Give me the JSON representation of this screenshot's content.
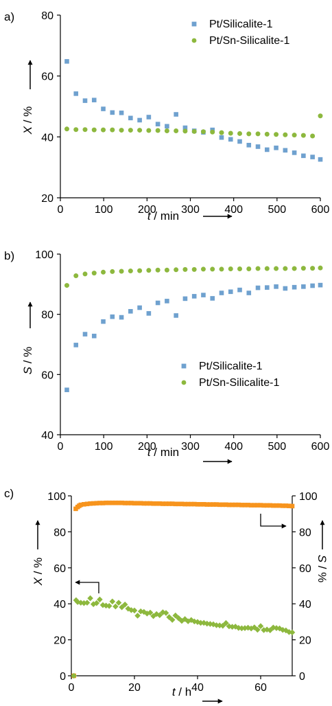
{
  "chart_data": [
    {
      "panel": "a)",
      "type": "scatter",
      "xlabel": {
        "var": "t",
        "unit": " / min"
      },
      "ylabel": {
        "var": "X",
        "unit": " / %"
      },
      "xlim": [
        0,
        600
      ],
      "ylim": [
        20,
        80
      ],
      "xticks": [
        "0",
        "100",
        "200",
        "300",
        "400",
        "500",
        "600"
      ],
      "yticks": [
        "20",
        "40",
        "60",
        "80"
      ],
      "legend": "top-right",
      "series": [
        {
          "name": "Pt/Silicalite-1",
          "marker": "square",
          "color": "#6fa1cf",
          "x": [
            15,
            36,
            57,
            78,
            99,
            120,
            141,
            162,
            183,
            204,
            225,
            246,
            267,
            288,
            309,
            330,
            351,
            372,
            393,
            414,
            435,
            456,
            477,
            498,
            519,
            540,
            561,
            582,
            600
          ],
          "y": [
            64.8,
            54.2,
            51.9,
            52.1,
            49.2,
            48.0,
            47.9,
            46.2,
            45.5,
            46.5,
            44.2,
            43.5,
            47.4,
            43.0,
            42.0,
            41.5,
            42.3,
            39.8,
            39.2,
            38.5,
            37.3,
            36.8,
            35.8,
            36.4,
            35.6,
            34.8,
            33.8,
            33.4,
            32.6
          ]
        },
        {
          "name": "Pt/Sn-Silicalite-1",
          "marker": "circle",
          "color": "#8db83e",
          "x": [
            15,
            36,
            57,
            78,
            99,
            120,
            141,
            162,
            183,
            204,
            225,
            246,
            267,
            288,
            309,
            330,
            351,
            372,
            393,
            414,
            435,
            456,
            477,
            498,
            519,
            540,
            561,
            582,
            600
          ],
          "y": [
            42.6,
            42.4,
            42.4,
            42.3,
            42.3,
            42.3,
            42.2,
            42.2,
            42.2,
            42.1,
            42.1,
            42.0,
            42.0,
            41.9,
            41.8,
            41.7,
            41.6,
            41.4,
            41.2,
            41.1,
            41.0,
            41.0,
            40.9,
            40.8,
            40.7,
            40.6,
            40.5,
            40.3,
            46.9
          ]
        }
      ]
    },
    {
      "panel": "b)",
      "type": "scatter",
      "xlabel": {
        "var": "t",
        "unit": " / min"
      },
      "ylabel": {
        "var": "S",
        "unit": " / %"
      },
      "xlim": [
        0,
        600
      ],
      "ylim": [
        40,
        100
      ],
      "xticks": [
        "0",
        "100",
        "200",
        "300",
        "400",
        "500",
        "600"
      ],
      "yticks": [
        "40",
        "60",
        "80",
        "100"
      ],
      "legend": "lower-right",
      "series": [
        {
          "name": "Pt/Silicalite-1",
          "marker": "square",
          "color": "#6fa1cf",
          "x": [
            15,
            36,
            57,
            78,
            99,
            120,
            141,
            162,
            183,
            204,
            225,
            246,
            267,
            288,
            309,
            330,
            351,
            372,
            393,
            414,
            435,
            456,
            477,
            498,
            519,
            540,
            561,
            582,
            600
          ],
          "y": [
            54.9,
            69.8,
            73.4,
            72.8,
            77.6,
            79.2,
            79.0,
            81.0,
            82.2,
            80.3,
            83.8,
            84.4,
            79.6,
            85.2,
            86.0,
            86.4,
            85.3,
            87.1,
            87.5,
            88.1,
            87.1,
            88.8,
            88.9,
            89.2,
            88.6,
            89.0,
            89.2,
            89.5,
            89.7
          ]
        },
        {
          "name": "Pt/Sn-Silicalite-1",
          "marker": "circle",
          "color": "#8db83e",
          "x": [
            15,
            36,
            57,
            78,
            99,
            120,
            141,
            162,
            183,
            204,
            225,
            246,
            267,
            288,
            309,
            330,
            351,
            372,
            393,
            414,
            435,
            456,
            477,
            498,
            519,
            540,
            561,
            582,
            600
          ],
          "y": [
            89.6,
            92.8,
            93.4,
            93.7,
            94.0,
            94.2,
            94.3,
            94.4,
            94.5,
            94.6,
            94.7,
            94.7,
            94.8,
            94.9,
            94.9,
            95.0,
            95.0,
            95.0,
            95.1,
            95.1,
            95.1,
            95.2,
            95.2,
            95.2,
            95.2,
            95.2,
            95.3,
            95.3,
            95.4
          ]
        }
      ]
    },
    {
      "panel": "c)",
      "type": "scatter",
      "xlabel": {
        "var": "t",
        "unit": " / h"
      },
      "ylabel": {
        "var": "X",
        "unit": " / %"
      },
      "y2label": {
        "var": "S",
        "unit": " / %"
      },
      "xlim": [
        0,
        70
      ],
      "ylim": [
        0,
        100
      ],
      "y2lim": [
        0,
        100
      ],
      "xticks": [
        "0",
        "20",
        "40",
        "60"
      ],
      "yticks": [
        "0",
        "20",
        "40",
        "60",
        "80",
        "100"
      ],
      "y2ticks": [
        "0",
        "20",
        "40",
        "60",
        "80",
        "100"
      ],
      "series": [
        {
          "name": "",
          "axis": "right",
          "marker": "square",
          "color": "#f7941d",
          "x": [
            0.8,
            1.4,
            2,
            2.5,
            3,
            4,
            5,
            6,
            7,
            8,
            9,
            10,
            11,
            12,
            13,
            14,
            15,
            16,
            17,
            18,
            19,
            20,
            21,
            22,
            23,
            24,
            25,
            26,
            27,
            28,
            29,
            30,
            31,
            32,
            33,
            34,
            35,
            36,
            37,
            38,
            39,
            40,
            41,
            42,
            43,
            44,
            45,
            46,
            47,
            48,
            49,
            50,
            51,
            52,
            53,
            54,
            55,
            56,
            57,
            58,
            59,
            60,
            61,
            62,
            63,
            64,
            65,
            66,
            67,
            68,
            69,
            70
          ],
          "y": [
            0,
            92.8,
            93.8,
            94.5,
            95.0,
            95.3,
            95.5,
            95.7,
            95.8,
            95.9,
            96.0,
            96.0,
            96.1,
            96.1,
            96.1,
            96.1,
            96.1,
            96.1,
            96.0,
            96.0,
            96.0,
            95.9,
            95.9,
            95.9,
            95.8,
            95.8,
            95.8,
            95.7,
            95.7,
            95.7,
            95.6,
            95.6,
            95.6,
            95.6,
            95.5,
            95.5,
            95.5,
            95.4,
            95.4,
            95.4,
            95.4,
            95.3,
            95.3,
            95.3,
            95.2,
            95.2,
            95.2,
            95.2,
            95.1,
            95.1,
            95.1,
            95.0,
            95.0,
            95.0,
            95.0,
            94.9,
            94.9,
            94.9,
            94.8,
            94.8,
            94.8,
            94.8,
            94.7,
            94.7,
            94.7,
            94.6,
            94.6,
            94.6,
            94.5,
            94.5,
            94.4,
            94.3
          ]
        },
        {
          "name": "",
          "axis": "left",
          "marker": "diamond",
          "color": "#8db83e",
          "x": [
            0.8,
            1.5,
            2,
            3,
            4,
            5,
            6,
            7,
            8,
            9,
            10,
            11,
            12,
            13,
            14,
            15,
            16,
            17,
            18,
            19,
            20,
            21,
            22,
            23,
            24,
            25,
            26,
            27,
            28,
            29,
            30,
            31,
            32,
            33,
            34,
            35,
            36,
            37,
            38,
            39,
            40,
            41,
            42,
            43,
            44,
            45,
            46,
            47,
            48,
            49,
            50,
            51,
            52,
            53,
            54,
            55,
            56,
            57,
            58,
            59,
            60,
            61,
            62,
            63,
            64,
            65,
            66,
            67,
            68,
            69,
            70
          ],
          "y": [
            0,
            42.0,
            41.0,
            40.6,
            40.4,
            40.6,
            43.1,
            39.8,
            40.4,
            42.4,
            39.3,
            39.0,
            38.8,
            41.3,
            38.5,
            40.6,
            38.1,
            39.6,
            37.3,
            36.5,
            36.3,
            33.4,
            35.8,
            35.5,
            34.6,
            35.1,
            33.2,
            34.3,
            33.7,
            35.3,
            34.9,
            32.6,
            31.1,
            33.5,
            32.0,
            30.5,
            31.5,
            30.3,
            31.0,
            30.2,
            29.9,
            29.4,
            29.4,
            29.0,
            28.8,
            28.6,
            28.1,
            28.0,
            27.8,
            29.3,
            27.5,
            27.2,
            27.3,
            26.6,
            26.4,
            26.5,
            26.7,
            26.3,
            26.9,
            25.6,
            27.6,
            25.4,
            25.7,
            25.3,
            26.8,
            26.5,
            26.3,
            25.5,
            25.2,
            24.3,
            24.1
          ]
        }
      ]
    }
  ]
}
